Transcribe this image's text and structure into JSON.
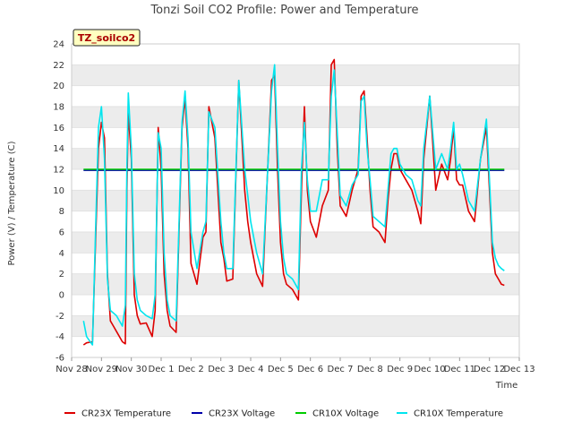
{
  "chart_data": {
    "type": "line",
    "title": "Tonzi Soil CO2 Profile: Power and Temperature",
    "xlabel": "Time",
    "ylabel": "Power (V) / Temperature (C)",
    "badge": "TZ_soilco2",
    "ylim": [
      -6,
      24
    ],
    "yticks": [
      -6,
      -4,
      -2,
      0,
      2,
      4,
      6,
      8,
      10,
      12,
      14,
      16,
      18,
      20,
      22,
      24
    ],
    "xlim": [
      0,
      15
    ],
    "xticks": [
      0,
      1,
      2,
      3,
      4,
      5,
      6,
      7,
      8,
      9,
      10,
      11,
      12,
      13,
      14,
      15
    ],
    "xtick_labels": [
      "Nov 28",
      "Nov 29",
      "Nov 30",
      "Dec 1",
      "Dec 2",
      "Dec 3",
      "Dec 4",
      "Dec 5",
      "Dec 6",
      "Dec 7",
      "Dec 8",
      "Dec 9",
      "Dec 10",
      "Dec 11",
      "Dec 12",
      "Dec 13"
    ],
    "grid": "horizontal bands",
    "legend_position": "bottom",
    "series": [
      {
        "name": "CR23X Temperature",
        "color": "#dd0000",
        "x": [
          0.4,
          0.5,
          0.7,
          0.8,
          0.9,
          1.0,
          1.1,
          1.2,
          1.3,
          1.5,
          1.7,
          1.8,
          1.85,
          1.9,
          2.0,
          2.1,
          2.2,
          2.3,
          2.5,
          2.7,
          2.8,
          2.9,
          3.0,
          3.1,
          3.2,
          3.3,
          3.5,
          3.7,
          3.8,
          3.9,
          4.0,
          4.2,
          4.4,
          4.5,
          4.6,
          4.8,
          5.0,
          5.1,
          5.2,
          5.4,
          5.6,
          5.8,
          5.9,
          6.0,
          6.2,
          6.4,
          6.7,
          6.8,
          6.9,
          7.0,
          7.1,
          7.2,
          7.4,
          7.6,
          7.7,
          7.8,
          7.9,
          8.0,
          8.2,
          8.4,
          8.6,
          8.7,
          8.8,
          8.9,
          9.0,
          9.2,
          9.4,
          9.6,
          9.7,
          9.8,
          9.9,
          10.0,
          10.1,
          10.3,
          10.5,
          10.6,
          10.7,
          10.8,
          10.9,
          11.0,
          11.2,
          11.4,
          11.6,
          11.7,
          11.8,
          12.0,
          12.2,
          12.4,
          12.6,
          12.7,
          12.8,
          12.9,
          13.0,
          13.1,
          13.3,
          13.5,
          13.7,
          13.9,
          14.0,
          14.1,
          14.2,
          14.3,
          14.4,
          14.5
        ],
        "y": [
          -4.8,
          -4.6,
          -4.5,
          5.0,
          14.0,
          16.5,
          15.0,
          2.0,
          -2.5,
          -3.5,
          -4.5,
          -4.7,
          10.0,
          17.5,
          13.0,
          0.0,
          -2.0,
          -2.8,
          -2.7,
          -4.0,
          -1.5,
          16.0,
          12.0,
          2.0,
          -1.5,
          -3.0,
          -3.6,
          16.0,
          18.8,
          14.0,
          3.0,
          1.0,
          5.5,
          6.0,
          18.0,
          15.0,
          5.0,
          3.5,
          1.3,
          1.5,
          20.5,
          10.0,
          7.0,
          5.0,
          2.0,
          0.8,
          20.5,
          21.0,
          12.0,
          5.0,
          2.0,
          1.0,
          0.5,
          -0.5,
          10.0,
          18.0,
          10.0,
          7.0,
          5.5,
          8.5,
          10.0,
          22.0,
          22.5,
          14.0,
          8.5,
          7.5,
          10.0,
          12.0,
          19.0,
          19.5,
          15.0,
          10.0,
          6.5,
          6.0,
          5.0,
          9.0,
          12.0,
          13.5,
          13.5,
          12.0,
          11.0,
          10.0,
          8.0,
          6.8,
          13.0,
          19.0,
          10.0,
          12.5,
          11.0,
          13.0,
          16.0,
          11.0,
          10.5,
          10.5,
          8.0,
          7.0,
          13.0,
          16.0,
          10.0,
          4.0,
          2.0,
          1.5,
          1.0,
          0.9
        ]
      },
      {
        "name": "CR23X Voltage",
        "color": "#0000aa",
        "x": [
          0.4,
          14.5
        ],
        "y": [
          11.9,
          11.9
        ]
      },
      {
        "name": "CR10X Voltage",
        "color": "#00cc00",
        "x": [
          0.4,
          14.5
        ],
        "y": [
          12.0,
          12.0
        ]
      },
      {
        "name": "CR10X Temperature",
        "color": "#00e5ee",
        "x": [
          0.4,
          0.5,
          0.7,
          0.8,
          0.9,
          1.0,
          1.1,
          1.2,
          1.3,
          1.5,
          1.7,
          1.8,
          1.85,
          1.9,
          2.0,
          2.1,
          2.2,
          2.3,
          2.5,
          2.7,
          2.8,
          2.9,
          3.0,
          3.1,
          3.2,
          3.3,
          3.5,
          3.7,
          3.8,
          3.9,
          4.0,
          4.2,
          4.4,
          4.5,
          4.6,
          4.8,
          5.0,
          5.1,
          5.2,
          5.4,
          5.6,
          5.8,
          5.9,
          6.0,
          6.2,
          6.4,
          6.7,
          6.8,
          6.9,
          7.0,
          7.1,
          7.2,
          7.4,
          7.6,
          7.7,
          7.8,
          7.9,
          8.0,
          8.2,
          8.4,
          8.6,
          8.7,
          8.8,
          8.9,
          9.0,
          9.2,
          9.4,
          9.6,
          9.7,
          9.8,
          9.9,
          10.0,
          10.1,
          10.3,
          10.5,
          10.6,
          10.7,
          10.8,
          10.9,
          11.0,
          11.2,
          11.4,
          11.6,
          11.7,
          11.8,
          12.0,
          12.2,
          12.4,
          12.6,
          12.7,
          12.8,
          12.9,
          13.0,
          13.1,
          13.3,
          13.5,
          13.7,
          13.9,
          14.0,
          14.1,
          14.2,
          14.3,
          14.4,
          14.5
        ],
        "y": [
          -2.5,
          -4.0,
          -4.8,
          6.0,
          16.0,
          18.0,
          13.0,
          1.5,
          -1.5,
          -2.0,
          -3.0,
          -1.0,
          12.0,
          19.3,
          14.0,
          2.0,
          -0.5,
          -1.5,
          -2.0,
          -2.3,
          0.0,
          15.5,
          14.0,
          4.0,
          -0.5,
          -2.0,
          -2.5,
          16.5,
          19.5,
          15.0,
          6.0,
          2.5,
          6.0,
          7.0,
          17.5,
          16.0,
          7.0,
          4.0,
          2.5,
          2.5,
          20.5,
          12.0,
          9.5,
          7.0,
          4.0,
          2.0,
          19.5,
          22.0,
          14.0,
          7.0,
          3.5,
          2.0,
          1.5,
          0.5,
          12.0,
          16.5,
          11.0,
          8.0,
          8.0,
          11.0,
          11.0,
          19.0,
          21.5,
          15.5,
          9.5,
          8.5,
          10.5,
          11.5,
          18.5,
          19.0,
          14.0,
          11.0,
          7.5,
          7.0,
          6.5,
          10.0,
          13.5,
          14.0,
          14.0,
          12.5,
          11.5,
          11.0,
          9.0,
          8.5,
          14.0,
          19.0,
          12.0,
          13.5,
          12.0,
          14.0,
          16.5,
          12.0,
          12.5,
          11.5,
          9.0,
          8.0,
          13.0,
          16.8,
          11.0,
          5.0,
          3.5,
          2.8,
          2.5,
          2.3
        ]
      }
    ]
  }
}
